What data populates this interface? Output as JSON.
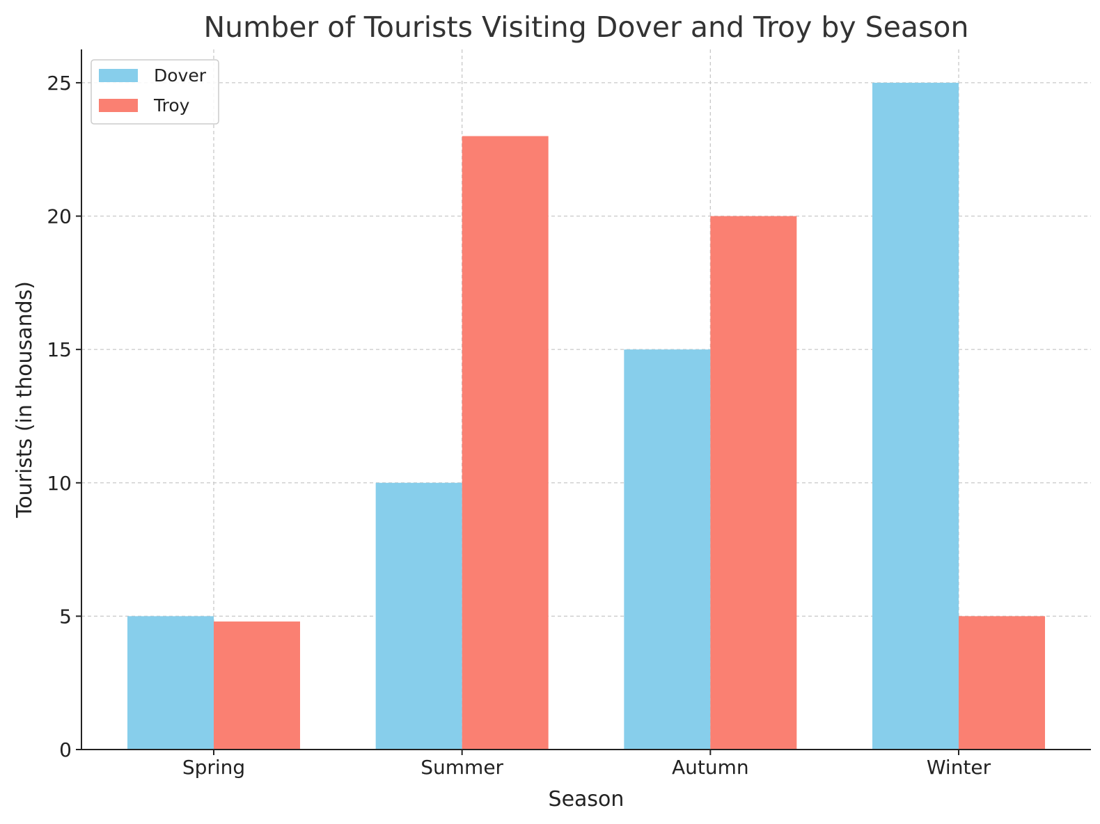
{
  "chart_data": {
    "type": "bar",
    "title": "Number of Tourists Visiting Dover and Troy by Season",
    "xlabel": "Season",
    "ylabel": "Tourists (in thousands)",
    "categories": [
      "Spring",
      "Summer",
      "Autumn",
      "Winter"
    ],
    "series": [
      {
        "name": "Dover",
        "values": [
          5,
          10,
          15,
          25
        ],
        "color": "#87CEEB"
      },
      {
        "name": "Troy",
        "values": [
          4.8,
          23,
          20,
          5
        ],
        "color": "#FA8072"
      }
    ],
    "ylim": [
      0,
      26.25
    ],
    "yticks": [
      0,
      5,
      10,
      15,
      20,
      25
    ],
    "grid": true,
    "legend_position": "top-left"
  }
}
